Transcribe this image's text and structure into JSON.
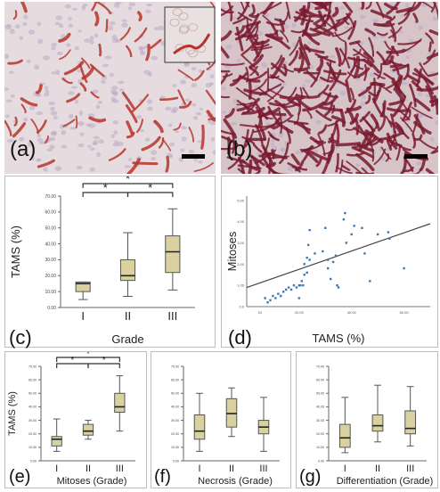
{
  "panels": {
    "a": {
      "letter": "(a)"
    },
    "b": {
      "letter": "(b)"
    },
    "c": {
      "letter": "(c)"
    },
    "d": {
      "letter": "(d)"
    },
    "e": {
      "letter": "(e)"
    },
    "f": {
      "letter": "(f)"
    },
    "g": {
      "letter": "(g)"
    }
  },
  "colors": {
    "box_fill": "#d9d2a0",
    "box_stroke": "#555555",
    "point": "#3a78b5",
    "fit_line": "#444444",
    "stain_light_bg": "#e6dcdf",
    "stain_dark_bg": "#d6c4c9",
    "stain_brown_red": "#b5342a",
    "stain_dark_red": "#7a1a2e"
  },
  "chart_data": [
    {
      "id": "c",
      "type": "box",
      "ylabel": "TAMS (%)",
      "xlabel": "Grade",
      "categories": [
        "I",
        "II",
        "III"
      ],
      "yticks": [
        "0.00",
        "10.00",
        "20.00",
        "30.00",
        "40.00",
        "50.00",
        "60.00",
        "70.00"
      ],
      "ylim": [
        0,
        70
      ],
      "boxes": [
        {
          "min": 5,
          "q1": 10,
          "median": 15,
          "q3": 16,
          "max": 16
        },
        {
          "min": 7,
          "q1": 17,
          "median": 20,
          "q3": 30,
          "max": 47
        },
        {
          "min": 11,
          "q1": 22,
          "median": 35,
          "q3": 45,
          "max": 62
        }
      ],
      "brackets": [
        {
          "from": 0,
          "to": 2,
          "label": "*"
        },
        {
          "from": 0,
          "to": 1,
          "label": "*"
        },
        {
          "from": 1,
          "to": 2,
          "label": "*"
        }
      ]
    },
    {
      "id": "d",
      "type": "scatter",
      "ylabel": "Mitoses",
      "xlabel": "TAMS (%)",
      "xticks": [
        "20",
        "20,00",
        "40,00",
        "60,00"
      ],
      "yticks": [
        "0,0",
        "1,00",
        "2,00",
        "3,00",
        "4,00",
        "5,00"
      ],
      "xlim": [
        0,
        70
      ],
      "ylim": [
        0,
        5.2
      ],
      "points": [
        [
          7,
          0.4
        ],
        [
          8,
          0.2
        ],
        [
          9,
          0.3
        ],
        [
          10,
          0.5
        ],
        [
          11,
          0.4
        ],
        [
          12,
          0.6
        ],
        [
          13,
          0.5
        ],
        [
          14,
          0.7
        ],
        [
          15,
          0.8
        ],
        [
          16,
          0.9
        ],
        [
          17,
          0.8
        ],
        [
          18,
          1.0
        ],
        [
          19,
          0.9
        ],
        [
          20,
          1.0
        ],
        [
          20,
          0.4
        ],
        [
          20.5,
          1.0
        ],
        [
          21,
          1.2
        ],
        [
          21.5,
          1.0
        ],
        [
          22,
          1.5
        ],
        [
          22,
          2.0
        ],
        [
          23,
          2.3
        ],
        [
          23,
          1.6
        ],
        [
          23.5,
          2.9
        ],
        [
          24,
          2.2
        ],
        [
          24,
          3.6
        ],
        [
          26,
          2.5
        ],
        [
          29,
          2.6
        ],
        [
          30,
          3.7
        ],
        [
          31,
          2.2
        ],
        [
          31,
          1.8
        ],
        [
          32,
          1.3
        ],
        [
          33,
          2.1
        ],
        [
          34,
          2.4
        ],
        [
          34.5,
          1.0
        ],
        [
          35,
          0.9
        ],
        [
          37,
          4.1
        ],
        [
          37.5,
          4.4
        ],
        [
          38,
          3.0
        ],
        [
          40,
          3.4
        ],
        [
          41,
          3.8
        ],
        [
          44,
          3.7
        ],
        [
          45,
          2.5
        ],
        [
          47,
          1.2
        ],
        [
          50,
          3.4
        ],
        [
          54,
          3.5
        ],
        [
          54.5,
          3.2
        ],
        [
          60,
          1.8
        ]
      ],
      "fit": {
        "x": [
          0,
          70
        ],
        "y": [
          0.9,
          3.9
        ]
      }
    },
    {
      "id": "e",
      "type": "box",
      "ylabel": "TAMS (%)",
      "xlabel": "Mitoses (Grade)",
      "categories": [
        "I",
        "II",
        "III"
      ],
      "yticks": [
        "0.00",
        "10.00",
        "20.00",
        "30.00",
        "40.00",
        "50.00",
        "60.00",
        "70.00"
      ],
      "ylim": [
        0,
        70
      ],
      "boxes": [
        {
          "min": 7,
          "q1": 11,
          "median": 16,
          "q3": 18,
          "max": 31
        },
        {
          "min": 16,
          "q1": 19,
          "median": 22,
          "q3": 27,
          "max": 30
        },
        {
          "min": 22,
          "q1": 36,
          "median": 40,
          "q3": 50,
          "max": 63
        }
      ],
      "brackets": [
        {
          "from": 0,
          "to": 2,
          "label": "*"
        },
        {
          "from": 0,
          "to": 1,
          "label": "*"
        },
        {
          "from": 1,
          "to": 2,
          "label": "*"
        }
      ]
    },
    {
      "id": "f",
      "type": "box",
      "ylabel": "",
      "xlabel": "Necrosis (Grade)",
      "categories": [
        "I",
        "II",
        "III"
      ],
      "yticks": [
        "0.00",
        "10.00",
        "20.00",
        "30.00",
        "40.00",
        "50.00",
        "60.00",
        "70.00"
      ],
      "ylim": [
        0,
        70
      ],
      "boxes": [
        {
          "min": 7,
          "q1": 16,
          "median": 22,
          "q3": 34,
          "max": 50
        },
        {
          "min": 18,
          "q1": 25,
          "median": 35,
          "q3": 46,
          "max": 54
        },
        {
          "min": 7,
          "q1": 20,
          "median": 25,
          "q3": 30,
          "max": 47
        }
      ],
      "brackets": []
    },
    {
      "id": "g",
      "type": "box",
      "ylabel": "",
      "xlabel": "Differentiation (Grade)",
      "categories": [
        "I",
        "II",
        "III"
      ],
      "yticks": [
        "0.00",
        "10.00",
        "20.00",
        "30.00",
        "40.00",
        "50.00",
        "60.00",
        "70.00"
      ],
      "ylim": [
        0,
        70
      ],
      "boxes": [
        {
          "min": 6,
          "q1": 10,
          "median": 17,
          "q3": 27,
          "max": 47
        },
        {
          "min": 14,
          "q1": 22,
          "median": 26,
          "q3": 34,
          "max": 56
        },
        {
          "min": 11,
          "q1": 20,
          "median": 24,
          "q3": 37,
          "max": 55
        }
      ],
      "brackets": []
    }
  ]
}
